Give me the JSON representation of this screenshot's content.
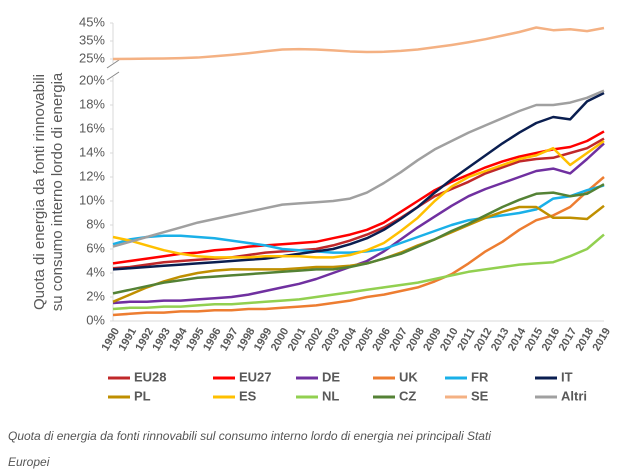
{
  "chart_data": {
    "type": "line",
    "y_title": [
      "Quota di energia da fonti rinnovabili",
      "su consumo interno lordo di energia"
    ],
    "caption": [
      "Quota di energia da fonti rinnovabili sul consumo interno lordo di energia nei principali Stati",
      "Europei"
    ],
    "categories": [
      "1990",
      "1991",
      "1992",
      "1993",
      "1994",
      "1995",
      "1996",
      "1997",
      "1998",
      "1999",
      "2000",
      "2001",
      "2002",
      "2003",
      "2004",
      "2005",
      "2006",
      "2007",
      "2008",
      "2009",
      "2010",
      "2011",
      "2012",
      "2013",
      "2014",
      "2015",
      "2016",
      "2017",
      "2018",
      "2019"
    ],
    "ylim": [
      0,
      45
    ],
    "axis_break": [
      20,
      25
    ],
    "yticks": [
      {
        "value": 0,
        "label": "0%"
      },
      {
        "value": 2,
        "label": "2%"
      },
      {
        "value": 4,
        "label": "4%"
      },
      {
        "value": 6,
        "label": "6%"
      },
      {
        "value": 8,
        "label": "8%"
      },
      {
        "value": 10,
        "label": "10%"
      },
      {
        "value": 12,
        "label": "12%"
      },
      {
        "value": 14,
        "label": "14%"
      },
      {
        "value": 16,
        "label": "16%"
      },
      {
        "value": 18,
        "label": "18%"
      },
      {
        "value": 20,
        "label": "20%"
      },
      {
        "value": 25,
        "label": "25%"
      },
      {
        "value": 35,
        "label": "35%"
      },
      {
        "value": 45,
        "label": "45%"
      }
    ],
    "series": [
      {
        "name": "EU28",
        "color": "#c0282a",
        "values": [
          4.4,
          4.5,
          4.7,
          4.9,
          5.0,
          5.1,
          5.2,
          5.3,
          5.5,
          5.7,
          5.8,
          5.9,
          6.0,
          6.3,
          6.7,
          7.2,
          7.8,
          8.6,
          9.5,
          10.4,
          11.0,
          11.6,
          12.3,
          12.8,
          13.3,
          13.5,
          13.6,
          14.0,
          14.4,
          15.2
        ]
      },
      {
        "name": "EU27",
        "color": "#ff0000",
        "values": [
          4.8,
          5.0,
          5.2,
          5.4,
          5.6,
          5.7,
          5.9,
          6.0,
          6.2,
          6.3,
          6.4,
          6.5,
          6.6,
          6.9,
          7.2,
          7.6,
          8.2,
          9.1,
          10.0,
          10.9,
          11.6,
          12.2,
          12.8,
          13.3,
          13.7,
          14.0,
          14.3,
          14.5,
          15.0,
          15.8
        ]
      },
      {
        "name": "DE",
        "color": "#7030a0",
        "values": [
          1.5,
          1.6,
          1.6,
          1.7,
          1.7,
          1.8,
          1.9,
          2.0,
          2.2,
          2.5,
          2.8,
          3.1,
          3.5,
          4.0,
          4.5,
          5.0,
          5.8,
          6.8,
          7.8,
          8.7,
          9.6,
          10.4,
          11.0,
          11.5,
          12.0,
          12.5,
          12.7,
          12.3,
          13.5,
          14.8
        ]
      },
      {
        "name": "UK",
        "color": "#ed7d31",
        "values": [
          0.5,
          0.6,
          0.7,
          0.7,
          0.8,
          0.8,
          0.9,
          0.9,
          1.0,
          1.0,
          1.1,
          1.2,
          1.3,
          1.5,
          1.7,
          2.0,
          2.2,
          2.5,
          2.8,
          3.3,
          3.9,
          4.8,
          5.8,
          6.6,
          7.6,
          8.4,
          8.8,
          9.5,
          10.8,
          12.0
        ]
      },
      {
        "name": "FR",
        "color": "#1ab0e8",
        "values": [
          6.4,
          6.8,
          7.0,
          7.1,
          7.1,
          7.0,
          6.9,
          6.7,
          6.5,
          6.3,
          6.0,
          5.9,
          5.8,
          5.7,
          5.7,
          5.8,
          6.0,
          6.5,
          7.0,
          7.5,
          8.0,
          8.4,
          8.6,
          8.8,
          9.0,
          9.3,
          10.2,
          10.4,
          10.9,
          11.3
        ]
      },
      {
        "name": "IT",
        "color": "#0a1e50",
        "values": [
          4.3,
          4.4,
          4.5,
          4.6,
          4.7,
          4.8,
          4.9,
          5.0,
          5.1,
          5.2,
          5.4,
          5.6,
          5.8,
          6.0,
          6.4,
          6.9,
          7.6,
          8.5,
          9.5,
          10.7,
          11.8,
          12.8,
          13.8,
          14.8,
          15.7,
          16.5,
          17.0,
          16.8,
          18.3,
          19.0
        ]
      },
      {
        "name": "PL",
        "color": "#bf8f00",
        "values": [
          1.6,
          2.2,
          2.8,
          3.3,
          3.7,
          4.0,
          4.2,
          4.3,
          4.3,
          4.3,
          4.3,
          4.4,
          4.5,
          4.5,
          4.6,
          4.8,
          5.2,
          5.7,
          6.3,
          6.8,
          7.4,
          8.0,
          8.6,
          9.1,
          9.5,
          9.5,
          8.6,
          8.6,
          8.5,
          9.6
        ]
      },
      {
        "name": "ES",
        "color": "#ffc000",
        "values": [
          7.0,
          6.7,
          6.3,
          5.9,
          5.6,
          5.4,
          5.3,
          5.3,
          5.3,
          5.4,
          5.4,
          5.4,
          5.3,
          5.3,
          5.5,
          5.9,
          6.5,
          7.5,
          8.6,
          10.0,
          11.2,
          12.0,
          12.5,
          13.0,
          13.5,
          13.8,
          14.4,
          13.0,
          14.0,
          15.0
        ]
      },
      {
        "name": "NL",
        "color": "#92d050",
        "values": [
          1.0,
          1.1,
          1.1,
          1.2,
          1.2,
          1.3,
          1.4,
          1.4,
          1.5,
          1.6,
          1.7,
          1.8,
          2.0,
          2.2,
          2.4,
          2.6,
          2.8,
          3.0,
          3.2,
          3.5,
          3.8,
          4.1,
          4.3,
          4.5,
          4.7,
          4.8,
          4.9,
          5.4,
          6.0,
          7.2
        ]
      },
      {
        "name": "CZ",
        "color": "#548235",
        "values": [
          2.3,
          2.6,
          2.9,
          3.2,
          3.4,
          3.6,
          3.7,
          3.8,
          3.9,
          4.0,
          4.1,
          4.2,
          4.3,
          4.3,
          4.5,
          4.8,
          5.2,
          5.6,
          6.2,
          6.8,
          7.5,
          8.1,
          8.8,
          9.5,
          10.1,
          10.6,
          10.7,
          10.4,
          10.6,
          11.4
        ]
      },
      {
        "name": "SE",
        "color": "#f4b183",
        "values": [
          25.0,
          25.1,
          25.2,
          25.3,
          25.5,
          25.8,
          26.5,
          27.3,
          28.2,
          29.3,
          30.3,
          30.5,
          30.3,
          29.8,
          29.2,
          28.9,
          29.0,
          29.5,
          30.3,
          31.5,
          32.8,
          34.3,
          36.0,
          38.0,
          40.0,
          42.5,
          41.0,
          41.5,
          40.5,
          42.2
        ]
      },
      {
        "name": "Altri",
        "color": "#a0a0a0",
        "values": [
          6.2,
          6.6,
          7.0,
          7.4,
          7.8,
          8.2,
          8.5,
          8.8,
          9.1,
          9.4,
          9.7,
          9.8,
          9.9,
          10.0,
          10.2,
          10.7,
          11.5,
          12.4,
          13.4,
          14.3,
          15.0,
          15.7,
          16.3,
          16.9,
          17.5,
          18.0,
          18.0,
          18.2,
          18.6,
          19.2
        ]
      }
    ]
  }
}
